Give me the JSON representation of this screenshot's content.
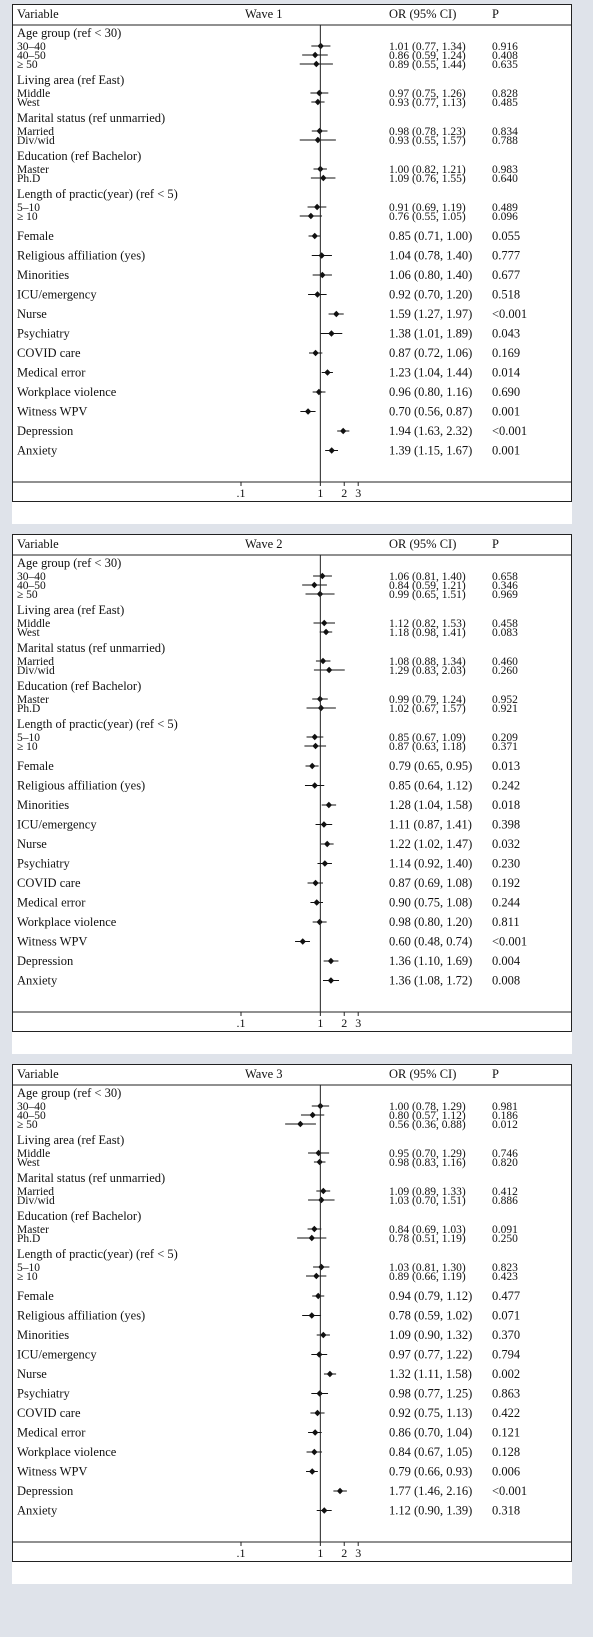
{
  "colors": {
    "background": "#dfe3ea",
    "panel": "#ffffff",
    "ink": "#111111"
  },
  "chart_data": [
    {
      "type": "forest",
      "header": {
        "variable": "Variable",
        "title": "Wave 1",
        "or": "OR (95% CI)",
        "p": "P"
      },
      "x_scale": "log",
      "x_ticks": [
        {
          "value": 0.1,
          "label": ".1"
        },
        {
          "value": 1,
          "label": "1"
        },
        {
          "value": 2,
          "label": "2"
        },
        {
          "value": 3,
          "label": "3"
        }
      ],
      "reference_line": 1,
      "groups": [
        {
          "label": "Age group (ref < 30)",
          "rows": [
            {
              "label": "30–40",
              "or": 1.01,
              "lo": 0.77,
              "hi": 1.34,
              "ci_text": "1.01 (0.77, 1.34)",
              "p": "0.916"
            },
            {
              "label": "40–50",
              "or": 0.86,
              "lo": 0.59,
              "hi": 1.24,
              "ci_text": "0.86 (0.59, 1.24)",
              "p": "0.408"
            },
            {
              "label": "≥ 50",
              "or": 0.89,
              "lo": 0.55,
              "hi": 1.44,
              "ci_text": "0.89 (0.55, 1.44)",
              "p": "0.635"
            }
          ]
        },
        {
          "label": "Living area (ref East)",
          "rows": [
            {
              "label": "Middle",
              "or": 0.97,
              "lo": 0.75,
              "hi": 1.26,
              "ci_text": "0.97 (0.75, 1.26)",
              "p": "0.828"
            },
            {
              "label": "West",
              "or": 0.93,
              "lo": 0.77,
              "hi": 1.13,
              "ci_text": "0.93 (0.77, 1.13)",
              "p": "0.485"
            }
          ]
        },
        {
          "label": "Marital status (ref unmarried)",
          "rows": [
            {
              "label": "Married",
              "or": 0.98,
              "lo": 0.78,
              "hi": 1.23,
              "ci_text": "0.98 (0.78, 1.23)",
              "p": "0.834"
            },
            {
              "label": "Div/wid",
              "or": 0.93,
              "lo": 0.55,
              "hi": 1.57,
              "ci_text": "0.93 (0.55, 1.57)",
              "p": "0.788"
            }
          ]
        },
        {
          "label": "Education (ref Bachelor)",
          "rows": [
            {
              "label": "Master",
              "or": 1.0,
              "lo": 0.82,
              "hi": 1.21,
              "ci_text": "1.00 (0.82, 1.21)",
              "p": "0.983"
            },
            {
              "label": "Ph.D",
              "or": 1.09,
              "lo": 0.76,
              "hi": 1.55,
              "ci_text": "1.09 (0.76, 1.55)",
              "p": "0.640"
            }
          ]
        },
        {
          "label": "Length of practic(year) (ref < 5)",
          "rows": [
            {
              "label": "5–10",
              "or": 0.91,
              "lo": 0.69,
              "hi": 1.19,
              "ci_text": "0.91 (0.69, 1.19)",
              "p": "0.489"
            },
            {
              "label": "≥ 10",
              "or": 0.76,
              "lo": 0.55,
              "hi": 1.05,
              "ci_text": "0.76 (0.55, 1.05)",
              "p": "0.096"
            }
          ]
        },
        {
          "rows": [
            {
              "label": "Female",
              "or": 0.85,
              "lo": 0.71,
              "hi": 1.0,
              "ci_text": "0.85 (0.71, 1.00)",
              "p": "0.055"
            },
            {
              "label": "Religious affiliation (yes)",
              "or": 1.04,
              "lo": 0.78,
              "hi": 1.4,
              "ci_text": "1.04 (0.78, 1.40)",
              "p": "0.777"
            },
            {
              "label": "Minorities",
              "or": 1.06,
              "lo": 0.8,
              "hi": 1.4,
              "ci_text": "1.06 (0.80, 1.40)",
              "p": "0.677"
            },
            {
              "label": "ICU/emergency",
              "or": 0.92,
              "lo": 0.7,
              "hi": 1.2,
              "ci_text": "0.92 (0.70, 1.20)",
              "p": "0.518"
            },
            {
              "label": "Nurse",
              "or": 1.59,
              "lo": 1.27,
              "hi": 1.97,
              "ci_text": "1.59 (1.27, 1.97)",
              "p": "<0.001"
            },
            {
              "label": "Psychiatry",
              "or": 1.38,
              "lo": 1.01,
              "hi": 1.89,
              "ci_text": "1.38 (1.01, 1.89)",
              "p": "0.043"
            },
            {
              "label": "COVID care",
              "or": 0.87,
              "lo": 0.72,
              "hi": 1.06,
              "ci_text": "0.87 (0.72, 1.06)",
              "p": "0.169"
            },
            {
              "label": "Medical error",
              "or": 1.23,
              "lo": 1.04,
              "hi": 1.44,
              "ci_text": "1.23 (1.04, 1.44)",
              "p": "0.014"
            },
            {
              "label": "Workplace violence",
              "or": 0.96,
              "lo": 0.8,
              "hi": 1.16,
              "ci_text": "0.96 (0.80, 1.16)",
              "p": "0.690"
            },
            {
              "label": "Witness WPV",
              "or": 0.7,
              "lo": 0.56,
              "hi": 0.87,
              "ci_text": "0.70 (0.56, 0.87)",
              "p": "0.001"
            },
            {
              "label": "Depression",
              "or": 1.94,
              "lo": 1.63,
              "hi": 2.32,
              "ci_text": "1.94 (1.63, 2.32)",
              "p": "<0.001"
            },
            {
              "label": "Anxiety",
              "or": 1.39,
              "lo": 1.15,
              "hi": 1.67,
              "ci_text": "1.39 (1.15, 1.67)",
              "p": "0.001"
            }
          ]
        }
      ]
    },
    {
      "type": "forest",
      "header": {
        "variable": "Variable",
        "title": "Wave 2",
        "or": "OR (95% CI)",
        "p": "P"
      },
      "x_scale": "log",
      "x_ticks": [
        {
          "value": 0.1,
          "label": ".1"
        },
        {
          "value": 1,
          "label": "1"
        },
        {
          "value": 2,
          "label": "2"
        },
        {
          "value": 3,
          "label": "3"
        }
      ],
      "reference_line": 1,
      "groups": [
        {
          "label": "Age group (ref < 30)",
          "rows": [
            {
              "label": "30–40",
              "or": 1.06,
              "lo": 0.81,
              "hi": 1.4,
              "ci_text": "1.06 (0.81, 1.40)",
              "p": "0.658"
            },
            {
              "label": "40–50",
              "or": 0.84,
              "lo": 0.59,
              "hi": 1.21,
              "ci_text": "0.84 (0.59, 1.21)",
              "p": "0.346"
            },
            {
              "label": "≥ 50",
              "or": 0.99,
              "lo": 0.65,
              "hi": 1.51,
              "ci_text": "0.99 (0.65, 1.51)",
              "p": "0.969"
            }
          ]
        },
        {
          "label": "Living area (ref East)",
          "rows": [
            {
              "label": "Middle",
              "or": 1.12,
              "lo": 0.82,
              "hi": 1.53,
              "ci_text": "1.12 (0.82, 1.53)",
              "p": "0.458"
            },
            {
              "label": "West",
              "or": 1.18,
              "lo": 0.98,
              "hi": 1.41,
              "ci_text": "1.18 (0.98, 1.41)",
              "p": "0.083"
            }
          ]
        },
        {
          "label": "Marital status (ref unmarried)",
          "rows": [
            {
              "label": "Married",
              "or": 1.08,
              "lo": 0.88,
              "hi": 1.34,
              "ci_text": "1.08 (0.88, 1.34)",
              "p": "0.460"
            },
            {
              "label": "Div/wid",
              "or": 1.29,
              "lo": 0.83,
              "hi": 2.03,
              "ci_text": "1.29 (0.83, 2.03)",
              "p": "0.260"
            }
          ]
        },
        {
          "label": "Education (ref Bachelor)",
          "rows": [
            {
              "label": "Master",
              "or": 0.99,
              "lo": 0.79,
              "hi": 1.24,
              "ci_text": "0.99 (0.79, 1.24)",
              "p": "0.952"
            },
            {
              "label": "Ph.D",
              "or": 1.02,
              "lo": 0.67,
              "hi": 1.57,
              "ci_text": "1.02 (0.67, 1.57)",
              "p": "0.921"
            }
          ]
        },
        {
          "label": "Length of practic(year) (ref < 5)",
          "rows": [
            {
              "label": "5–10",
              "or": 0.85,
              "lo": 0.67,
              "hi": 1.09,
              "ci_text": "0.85 (0.67, 1.09)",
              "p": "0.209"
            },
            {
              "label": "≥ 10",
              "or": 0.87,
              "lo": 0.63,
              "hi": 1.18,
              "ci_text": "0.87 (0.63, 1.18)",
              "p": "0.371"
            }
          ]
        },
        {
          "rows": [
            {
              "label": "Female",
              "or": 0.79,
              "lo": 0.65,
              "hi": 0.95,
              "ci_text": "0.79 (0.65, 0.95)",
              "p": "0.013"
            },
            {
              "label": "Religious affiliation (yes)",
              "or": 0.85,
              "lo": 0.64,
              "hi": 1.12,
              "ci_text": "0.85 (0.64, 1.12)",
              "p": "0.242"
            },
            {
              "label": "Minorities",
              "or": 1.28,
              "lo": 1.04,
              "hi": 1.58,
              "ci_text": "1.28 (1.04, 1.58)",
              "p": "0.018"
            },
            {
              "label": "ICU/emergency",
              "or": 1.11,
              "lo": 0.87,
              "hi": 1.41,
              "ci_text": "1.11 (0.87, 1.41)",
              "p": "0.398"
            },
            {
              "label": "Nurse",
              "or": 1.22,
              "lo": 1.02,
              "hi": 1.47,
              "ci_text": "1.22 (1.02, 1.47)",
              "p": "0.032"
            },
            {
              "label": "Psychiatry",
              "or": 1.14,
              "lo": 0.92,
              "hi": 1.4,
              "ci_text": "1.14 (0.92, 1.40)",
              "p": "0.230"
            },
            {
              "label": "COVID care",
              "or": 0.87,
              "lo": 0.69,
              "hi": 1.08,
              "ci_text": "0.87 (0.69, 1.08)",
              "p": "0.192"
            },
            {
              "label": "Medical error",
              "or": 0.9,
              "lo": 0.75,
              "hi": 1.08,
              "ci_text": "0.90 (0.75, 1.08)",
              "p": "0.244"
            },
            {
              "label": "Workplace violence",
              "or": 0.98,
              "lo": 0.8,
              "hi": 1.2,
              "ci_text": "0.98 (0.80, 1.20)",
              "p": "0.811"
            },
            {
              "label": "Witness WPV",
              "or": 0.6,
              "lo": 0.48,
              "hi": 0.74,
              "ci_text": "0.60 (0.48, 0.74)",
              "p": "<0.001"
            },
            {
              "label": "Depression",
              "or": 1.36,
              "lo": 1.1,
              "hi": 1.69,
              "ci_text": "1.36 (1.10, 1.69)",
              "p": "0.004"
            },
            {
              "label": "Anxiety",
              "or": 1.36,
              "lo": 1.08,
              "hi": 1.72,
              "ci_text": "1.36 (1.08, 1.72)",
              "p": "0.008"
            }
          ]
        }
      ]
    },
    {
      "type": "forest",
      "header": {
        "variable": "Variable",
        "title": "Wave 3",
        "or": "OR (95% CI)",
        "p": "P"
      },
      "x_scale": "log",
      "x_ticks": [
        {
          "value": 0.1,
          "label": ".1"
        },
        {
          "value": 1,
          "label": "1"
        },
        {
          "value": 2,
          "label": "2"
        },
        {
          "value": 3,
          "label": "3"
        }
      ],
      "reference_line": 1,
      "groups": [
        {
          "label": "Age group (ref < 30)",
          "rows": [
            {
              "label": "30–40",
              "or": 1.0,
              "lo": 0.78,
              "hi": 1.29,
              "ci_text": "1.00 (0.78, 1.29)",
              "p": "0.981"
            },
            {
              "label": "40–50",
              "or": 0.8,
              "lo": 0.57,
              "hi": 1.12,
              "ci_text": "0.80 (0.57, 1.12)",
              "p": "0.186"
            },
            {
              "label": "≥ 50",
              "or": 0.56,
              "lo": 0.36,
              "hi": 0.88,
              "ci_text": "0.56 (0.36, 0.88)",
              "p": "0.012"
            }
          ]
        },
        {
          "label": "Living area (ref East)",
          "rows": [
            {
              "label": "Middle",
              "or": 0.95,
              "lo": 0.7,
              "hi": 1.29,
              "ci_text": "0.95 (0.70, 1.29)",
              "p": "0.746"
            },
            {
              "label": "West",
              "or": 0.98,
              "lo": 0.83,
              "hi": 1.16,
              "ci_text": "0.98 (0.83, 1.16)",
              "p": "0.820"
            }
          ]
        },
        {
          "label": "Marital status (ref unmarried)",
          "rows": [
            {
              "label": "Married",
              "or": 1.09,
              "lo": 0.89,
              "hi": 1.33,
              "ci_text": "1.09 (0.89, 1.33)",
              "p": "0.412"
            },
            {
              "label": "Div/wid",
              "or": 1.03,
              "lo": 0.7,
              "hi": 1.51,
              "ci_text": "1.03 (0.70, 1.51)",
              "p": "0.886"
            }
          ]
        },
        {
          "label": "Education (ref Bachelor)",
          "rows": [
            {
              "label": "Master",
              "or": 0.84,
              "lo": 0.69,
              "hi": 1.03,
              "ci_text": "0.84 (0.69, 1.03)",
              "p": "0.091"
            },
            {
              "label": "Ph.D",
              "or": 0.78,
              "lo": 0.51,
              "hi": 1.19,
              "ci_text": "0.78 (0.51, 1.19)",
              "p": "0.250"
            }
          ]
        },
        {
          "label": "Length of practic(year) (ref < 5)",
          "rows": [
            {
              "label": "5–10",
              "or": 1.03,
              "lo": 0.81,
              "hi": 1.3,
              "ci_text": "1.03 (0.81, 1.30)",
              "p": "0.823"
            },
            {
              "label": "≥ 10",
              "or": 0.89,
              "lo": 0.66,
              "hi": 1.19,
              "ci_text": "0.89 (0.66, 1.19)",
              "p": "0.423"
            }
          ]
        },
        {
          "rows": [
            {
              "label": "Female",
              "or": 0.94,
              "lo": 0.79,
              "hi": 1.12,
              "ci_text": "0.94 (0.79, 1.12)",
              "p": "0.477"
            },
            {
              "label": "Religious affiliation (yes)",
              "or": 0.78,
              "lo": 0.59,
              "hi": 1.02,
              "ci_text": "0.78 (0.59, 1.02)",
              "p": "0.071"
            },
            {
              "label": "Minorities",
              "or": 1.09,
              "lo": 0.9,
              "hi": 1.32,
              "ci_text": "1.09 (0.90, 1.32)",
              "p": "0.370"
            },
            {
              "label": "ICU/emergency",
              "or": 0.97,
              "lo": 0.77,
              "hi": 1.22,
              "ci_text": "0.97 (0.77, 1.22)",
              "p": "0.794"
            },
            {
              "label": "Nurse",
              "or": 1.32,
              "lo": 1.11,
              "hi": 1.58,
              "ci_text": "1.32 (1.11, 1.58)",
              "p": "0.002"
            },
            {
              "label": "Psychiatry",
              "or": 0.98,
              "lo": 0.77,
              "hi": 1.25,
              "ci_text": "0.98 (0.77, 1.25)",
              "p": "0.863"
            },
            {
              "label": "COVID care",
              "or": 0.92,
              "lo": 0.75,
              "hi": 1.13,
              "ci_text": "0.92 (0.75, 1.13)",
              "p": "0.422"
            },
            {
              "label": "Medical error",
              "or": 0.86,
              "lo": 0.7,
              "hi": 1.04,
              "ci_text": "0.86 (0.70, 1.04)",
              "p": "0.121"
            },
            {
              "label": "Workplace violence",
              "or": 0.84,
              "lo": 0.67,
              "hi": 1.05,
              "ci_text": "0.84 (0.67, 1.05)",
              "p": "0.128"
            },
            {
              "label": "Witness WPV",
              "or": 0.79,
              "lo": 0.66,
              "hi": 0.93,
              "ci_text": "0.79 (0.66, 0.93)",
              "p": "0.006"
            },
            {
              "label": "Depression",
              "or": 1.77,
              "lo": 1.46,
              "hi": 2.16,
              "ci_text": "1.77 (1.46, 2.16)",
              "p": "<0.001"
            },
            {
              "label": "Anxiety",
              "or": 1.12,
              "lo": 0.9,
              "hi": 1.39,
              "ci_text": "1.12 (0.90, 1.39)",
              "p": "0.318"
            }
          ]
        }
      ]
    }
  ]
}
